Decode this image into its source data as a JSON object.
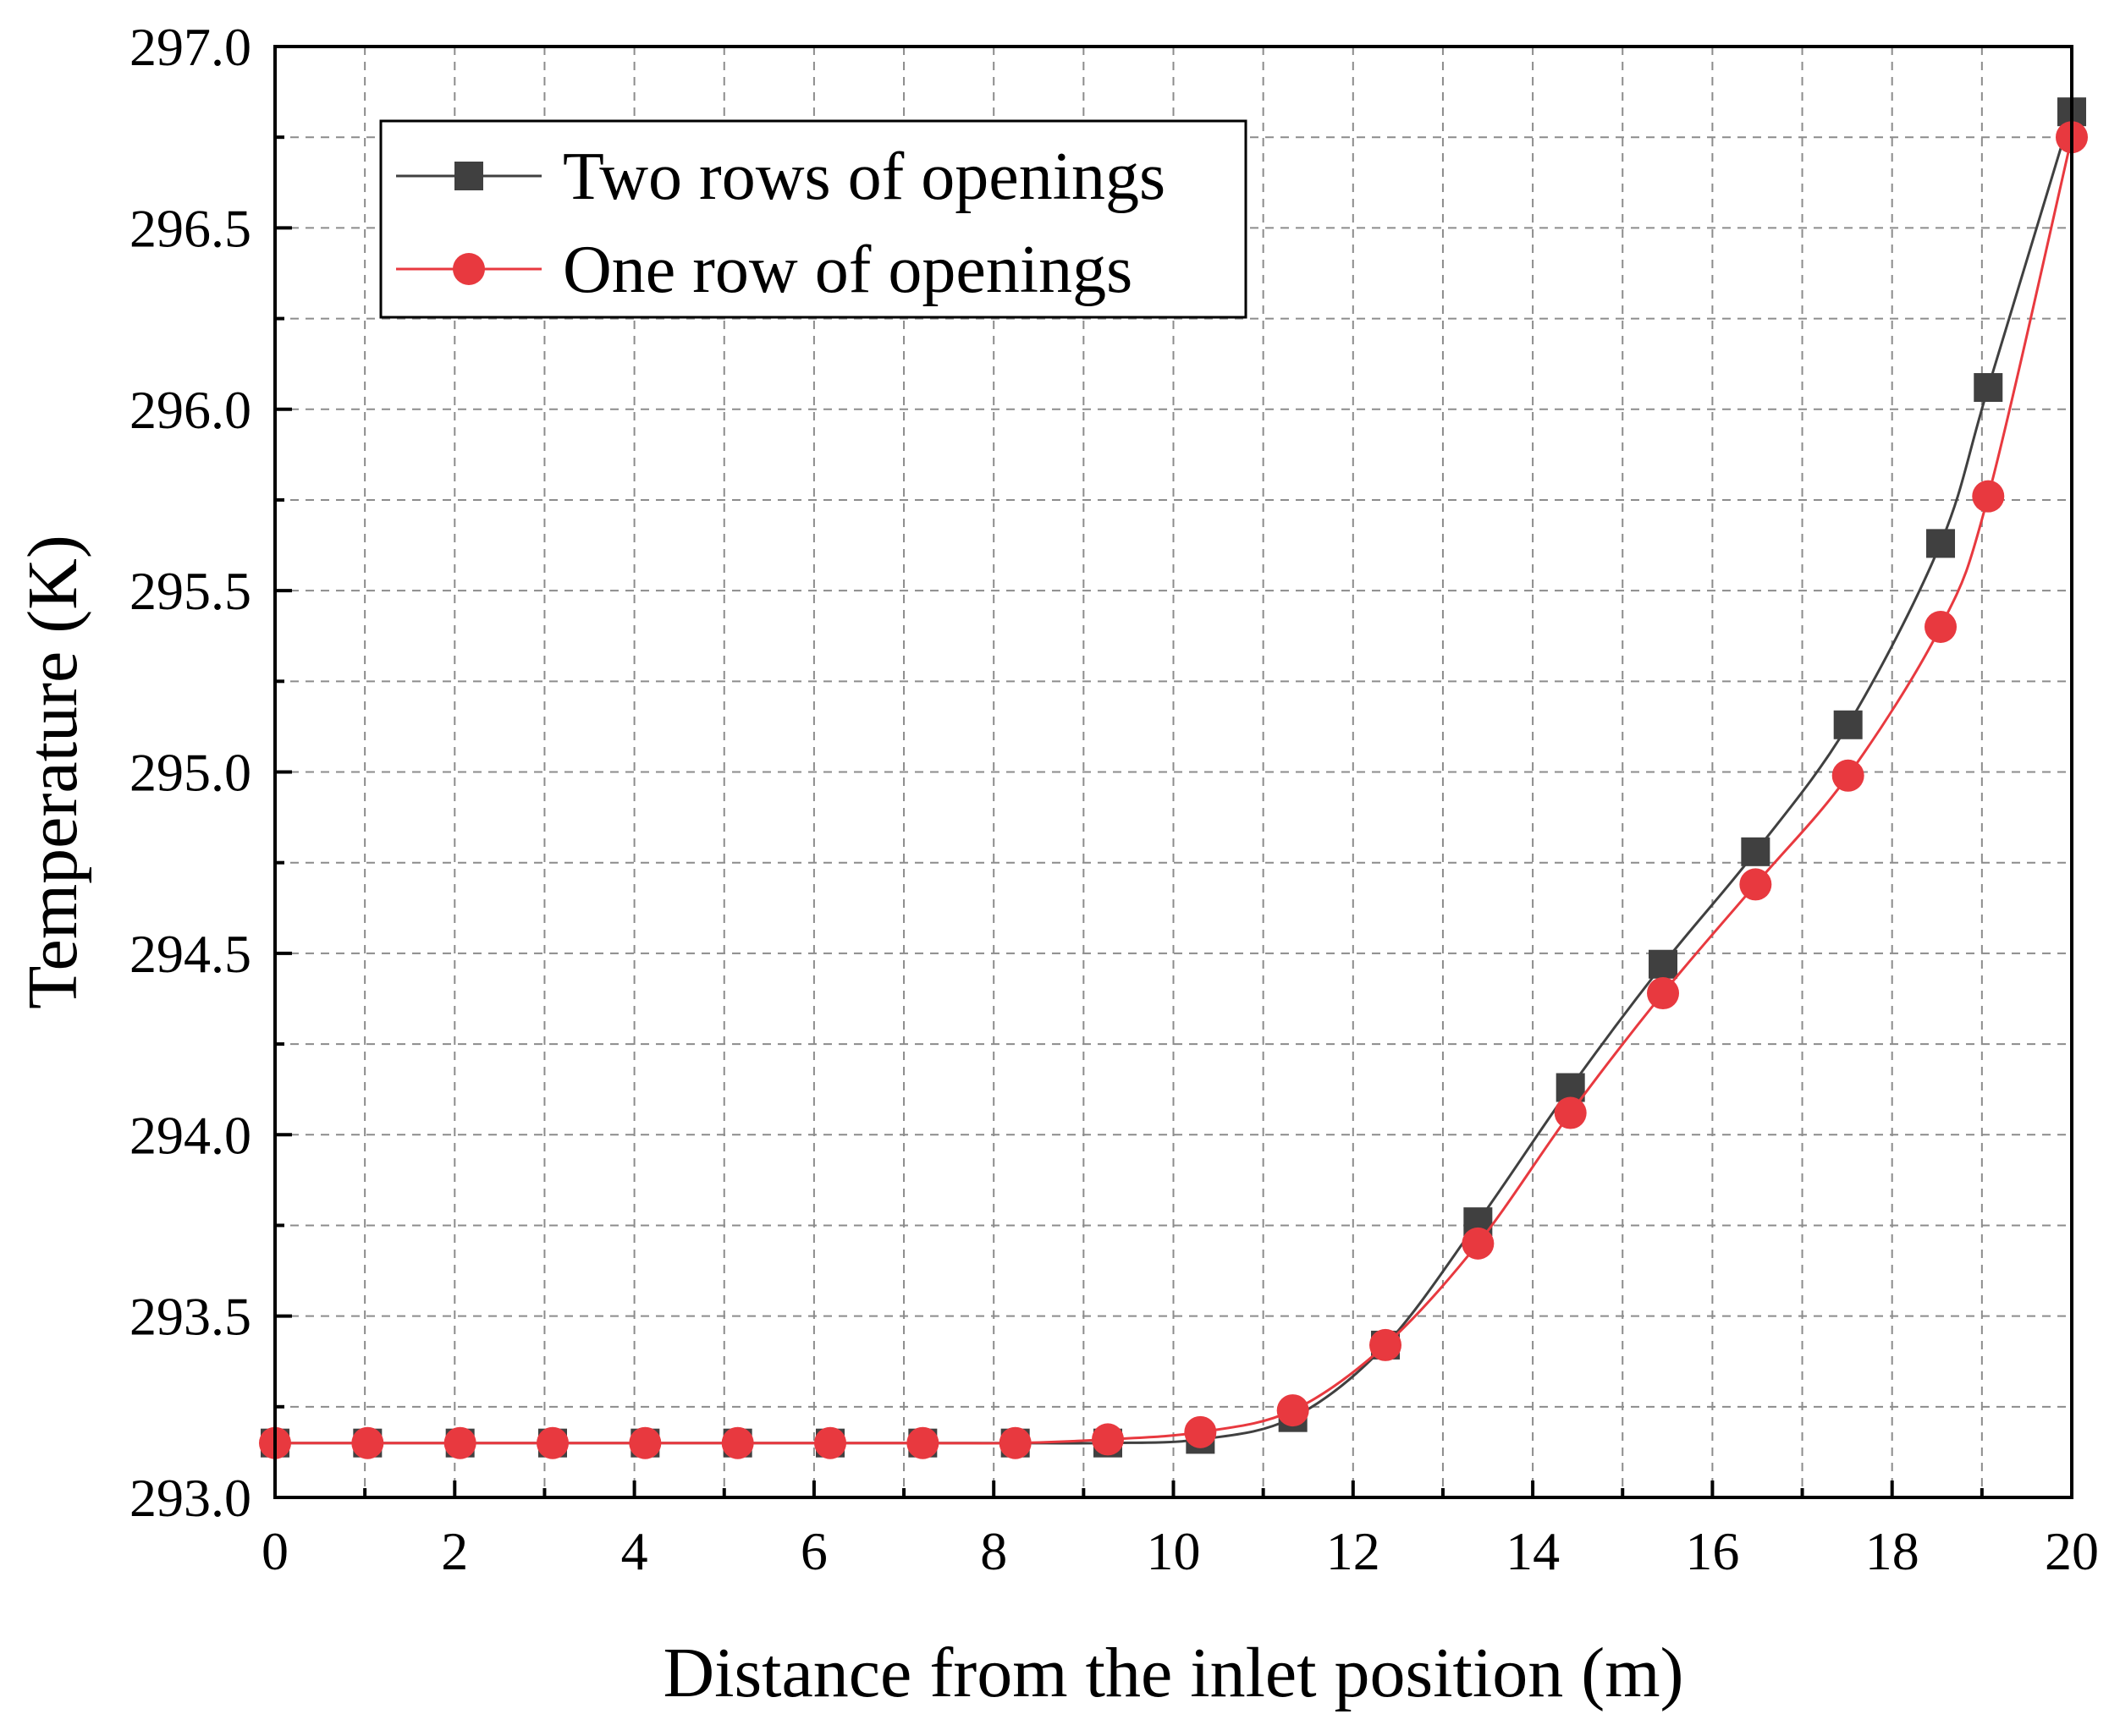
{
  "chart_data": {
    "type": "line",
    "title": "",
    "xlabel": "Distance from the inlet position (m)",
    "ylabel": "Temperature (K)",
    "xlim": [
      0,
      20
    ],
    "ylim": [
      293.0,
      297.0
    ],
    "x_ticks": [
      0,
      2,
      4,
      6,
      8,
      10,
      12,
      14,
      16,
      18,
      20
    ],
    "y_ticks": [
      "293.0",
      "293.5",
      "294.0",
      "294.5",
      "295.0",
      "295.5",
      "296.0",
      "296.5",
      "297.0"
    ],
    "grid": true,
    "legend_position": "top-left",
    "series": [
      {
        "name": "Two rows of openings",
        "color": "#404040",
        "marker": "square",
        "x": [
          0,
          1.03,
          2.06,
          3.09,
          4.12,
          5.15,
          6.18,
          7.21,
          8.24,
          9.27,
          10.3,
          11.33,
          12.36,
          13.39,
          14.42,
          15.45,
          16.48,
          17.51,
          18.54,
          19.07,
          20
        ],
        "values": [
          293.15,
          293.15,
          293.15,
          293.15,
          293.15,
          293.15,
          293.15,
          293.15,
          293.15,
          293.15,
          293.16,
          293.22,
          293.42,
          293.76,
          294.13,
          294.47,
          294.78,
          295.13,
          295.63,
          296.06,
          296.82
        ]
      },
      {
        "name": "One row of openings",
        "color": "#e8393f",
        "marker": "circle",
        "x": [
          0,
          1.03,
          2.06,
          3.09,
          4.12,
          5.15,
          6.18,
          7.21,
          8.24,
          9.27,
          10.3,
          11.33,
          12.36,
          13.39,
          14.42,
          15.45,
          16.48,
          17.51,
          18.54,
          19.07,
          20
        ],
        "values": [
          293.15,
          293.15,
          293.15,
          293.15,
          293.15,
          293.15,
          293.15,
          293.15,
          293.15,
          293.16,
          293.18,
          293.24,
          293.42,
          293.7,
          294.06,
          294.39,
          294.69,
          294.99,
          295.4,
          295.76,
          296.75
        ]
      }
    ]
  }
}
